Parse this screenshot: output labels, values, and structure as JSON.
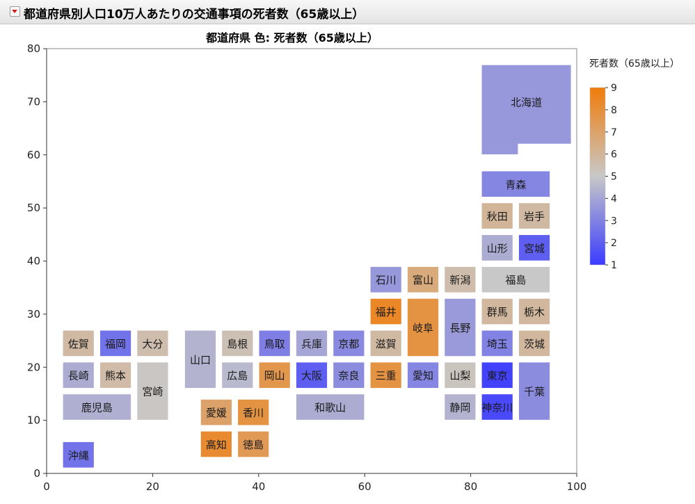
{
  "report": {
    "title": "都道府県別人口10万人あたりの交通事項の死者数（65歳以上）",
    "subtitle": "都道府県 色: 死者数（65歳以上）"
  },
  "chart_data": {
    "type": "heatmap",
    "title": "都道府県 色: 死者数（65歳以上）",
    "xlim": [
      0,
      100
    ],
    "ylim": [
      0,
      80
    ],
    "xticks": [
      0,
      20,
      40,
      60,
      80,
      100
    ],
    "yticks": [
      0,
      10,
      20,
      30,
      40,
      50,
      60,
      70,
      80
    ],
    "legend": {
      "title": "死者数（65歳以上）",
      "placement": "right",
      "min": 1,
      "max": 9,
      "ticks": [
        1,
        2,
        3,
        4,
        5,
        6,
        7,
        8,
        9
      ],
      "colors": [
        "#3b3bff",
        "#c8c8c8",
        "#f07c0a"
      ]
    },
    "cells": [
      {
        "name": "北海道",
        "x0": 82,
        "x1": 99,
        "y0": 60,
        "y1": 77,
        "value": 3.6
      },
      {
        "name": "青森",
        "x0": 82,
        "x1": 95,
        "y0": 52,
        "y1": 57,
        "value": 3.1
      },
      {
        "name": "秋田",
        "x0": 82,
        "x1": 88,
        "y0": 46,
        "y1": 51,
        "value": 6.0
      },
      {
        "name": "岩手",
        "x0": 89,
        "x1": 95,
        "y0": 46,
        "y1": 51,
        "value": 5.8
      },
      {
        "name": "山形",
        "x0": 82,
        "x1": 88,
        "y0": 40,
        "y1": 45,
        "value": 4.2
      },
      {
        "name": "宮城",
        "x0": 89,
        "x1": 95,
        "y0": 40,
        "y1": 45,
        "value": 2.0
      },
      {
        "name": "石川",
        "x0": 61,
        "x1": 67,
        "y0": 34,
        "y1": 39,
        "value": 3.6
      },
      {
        "name": "富山",
        "x0": 68,
        "x1": 74,
        "y0": 34,
        "y1": 39,
        "value": 6.6
      },
      {
        "name": "新潟",
        "x0": 75,
        "x1": 81,
        "y0": 34,
        "y1": 39,
        "value": 5.6
      },
      {
        "name": "福島",
        "x0": 82,
        "x1": 95,
        "y0": 34,
        "y1": 39,
        "value": 5.0
      },
      {
        "name": "福井",
        "x0": 61,
        "x1": 67,
        "y0": 28,
        "y1": 33,
        "value": 8.4
      },
      {
        "name": "岐阜",
        "x0": 68,
        "x1": 74,
        "y0": 22,
        "y1": 33,
        "value": 7.8
      },
      {
        "name": "長野",
        "x0": 75,
        "x1": 81,
        "y0": 22,
        "y1": 33,
        "value": 3.7
      },
      {
        "name": "群馬",
        "x0": 82,
        "x1": 88,
        "y0": 28,
        "y1": 33,
        "value": 5.9
      },
      {
        "name": "栃木",
        "x0": 89,
        "x1": 95,
        "y0": 28,
        "y1": 33,
        "value": 5.9
      },
      {
        "name": "佐賀",
        "x0": 3,
        "x1": 9,
        "y0": 22,
        "y1": 27,
        "value": 5.8
      },
      {
        "name": "福岡",
        "x0": 10,
        "x1": 16,
        "y0": 22,
        "y1": 27,
        "value": 2.6
      },
      {
        "name": "大分",
        "x0": 17,
        "x1": 23,
        "y0": 22,
        "y1": 27,
        "value": 5.6
      },
      {
        "name": "山口",
        "x0": 26,
        "x1": 32,
        "y0": 16,
        "y1": 27,
        "value": 4.4
      },
      {
        "name": "島根",
        "x0": 33,
        "x1": 39,
        "y0": 22,
        "y1": 27,
        "value": 5.4
      },
      {
        "name": "鳥取",
        "x0": 40,
        "x1": 46,
        "y0": 22,
        "y1": 27,
        "value": 2.9
      },
      {
        "name": "兵庫",
        "x0": 47,
        "x1": 53,
        "y0": 22,
        "y1": 27,
        "value": 4.0
      },
      {
        "name": "京都",
        "x0": 54,
        "x1": 60,
        "y0": 22,
        "y1": 27,
        "value": 3.2
      },
      {
        "name": "滋賀",
        "x0": 61,
        "x1": 67,
        "y0": 22,
        "y1": 27,
        "value": 5.8
      },
      {
        "name": "埼玉",
        "x0": 82,
        "x1": 88,
        "y0": 22,
        "y1": 27,
        "value": 3.0
      },
      {
        "name": "茨城",
        "x0": 89,
        "x1": 95,
        "y0": 22,
        "y1": 27,
        "value": 5.9
      },
      {
        "name": "長崎",
        "x0": 3,
        "x1": 9,
        "y0": 16,
        "y1": 21,
        "value": 4.2
      },
      {
        "name": "熊本",
        "x0": 10,
        "x1": 16,
        "y0": 16,
        "y1": 21,
        "value": 5.7
      },
      {
        "name": "宮崎",
        "x0": 17,
        "x1": 23,
        "y0": 10,
        "y1": 21,
        "value": 5.1
      },
      {
        "name": "広島",
        "x0": 33,
        "x1": 39,
        "y0": 16,
        "y1": 21,
        "value": 4.6
      },
      {
        "name": "岡山",
        "x0": 40,
        "x1": 46,
        "y0": 16,
        "y1": 21,
        "value": 7.6
      },
      {
        "name": "大阪",
        "x0": 47,
        "x1": 53,
        "y0": 16,
        "y1": 21,
        "value": 2.0
      },
      {
        "name": "奈良",
        "x0": 54,
        "x1": 60,
        "y0": 16,
        "y1": 21,
        "value": 3.3
      },
      {
        "name": "三重",
        "x0": 61,
        "x1": 67,
        "y0": 16,
        "y1": 21,
        "value": 7.8
      },
      {
        "name": "愛知",
        "x0": 68,
        "x1": 74,
        "y0": 16,
        "y1": 21,
        "value": 3.1
      },
      {
        "name": "山梨",
        "x0": 75,
        "x1": 81,
        "y0": 16,
        "y1": 21,
        "value": 5.2
      },
      {
        "name": "東京",
        "x0": 82,
        "x1": 88,
        "y0": 16,
        "y1": 21,
        "value": 1.2
      },
      {
        "name": "千葉",
        "x0": 89,
        "x1": 95,
        "y0": 10,
        "y1": 21,
        "value": 3.3
      },
      {
        "name": "鹿児島",
        "x0": 3,
        "x1": 16,
        "y0": 10,
        "y1": 15,
        "value": 4.3
      },
      {
        "name": "愛媛",
        "x0": 29,
        "x1": 35,
        "y0": 9,
        "y1": 14,
        "value": 7.0
      },
      {
        "name": "香川",
        "x0": 36,
        "x1": 42,
        "y0": 9,
        "y1": 14,
        "value": 7.8
      },
      {
        "name": "和歌山",
        "x0": 47,
        "x1": 60,
        "y0": 10,
        "y1": 15,
        "value": 4.2
      },
      {
        "name": "静岡",
        "x0": 75,
        "x1": 81,
        "y0": 10,
        "y1": 15,
        "value": 4.4
      },
      {
        "name": "神奈川",
        "x0": 82,
        "x1": 88,
        "y0": 10,
        "y1": 15,
        "value": 1.4
      },
      {
        "name": "高知",
        "x0": 29,
        "x1": 35,
        "y0": 3,
        "y1": 8,
        "value": 8.2
      },
      {
        "name": "徳島",
        "x0": 36,
        "x1": 42,
        "y0": 3,
        "y1": 8,
        "value": 7.4
      },
      {
        "name": "沖縄",
        "x0": 3,
        "x1": 9,
        "y0": 1,
        "y1": 6,
        "value": 2.6
      }
    ]
  }
}
